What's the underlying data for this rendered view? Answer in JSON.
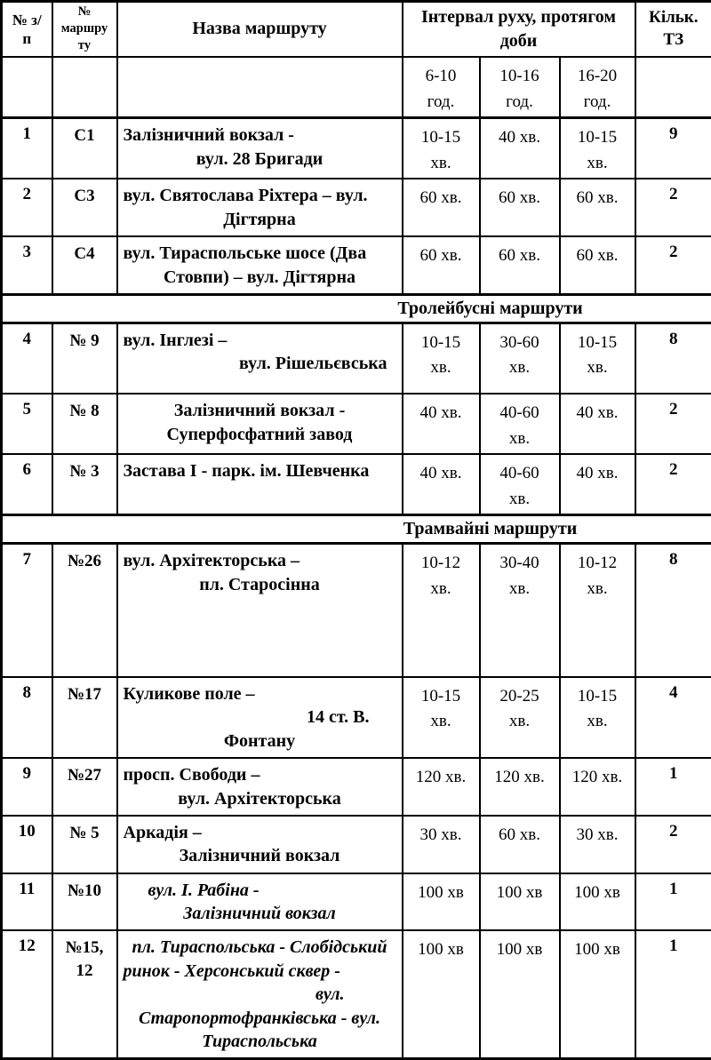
{
  "header": {
    "col_num": "№ з/\nп",
    "col_route": "№\nмаршру\nту",
    "col_name": "Назва маршруту",
    "col_interval": "Інтервал руху, протягом\nдоби",
    "col_count": "Кільк.\nТЗ",
    "periods": [
      "6-10\nгод.",
      "10-16\nгод.",
      "16-20\nгод."
    ]
  },
  "rows": [
    {
      "num": "1",
      "route": "С1",
      "italic": false,
      "name_lines": [
        {
          "text": "Залізничний вокзал -",
          "align": "left"
        },
        {
          "text": "вул. 28 Бригади",
          "align": "center"
        }
      ],
      "intervals": [
        "10-15\nхв.",
        "40 хв.",
        "10-15\nхв."
      ],
      "count": "9"
    },
    {
      "num": "2",
      "route": "С3",
      "italic": false,
      "name_lines": [
        {
          "text": "вул. Святослава Ріхтера – вул.",
          "align": "left"
        },
        {
          "text": "Дігтярна",
          "align": "center"
        }
      ],
      "intervals": [
        "60 хв.",
        "60 хв.",
        "60 хв."
      ],
      "count": "2"
    },
    {
      "num": "3",
      "route": "С4",
      "italic": false,
      "name_lines": [
        {
          "text": "вул. Тираспольське шосе (Два",
          "align": "left"
        },
        {
          "text": "Стовпи) –  вул. Дігтярна",
          "align": "center"
        }
      ],
      "intervals": [
        "60 хв.",
        "60 хв.",
        "60 хв."
      ],
      "count": "2"
    },
    {
      "type": "section",
      "title": "Тролейбусні маршрути"
    },
    {
      "num": "4",
      "route": "№ 9",
      "italic": false,
      "name_lines": [
        {
          "text": "вул. Інглезі –",
          "align": "left"
        },
        {
          "text": "вул. Рішельєвська",
          "align": "right"
        }
      ],
      "intervals": [
        "10-15\nхв.",
        "30-60\nхв.",
        "10-15\nхв."
      ],
      "count": "8"
    },
    {
      "num": "5",
      "route": "№ 8",
      "italic": false,
      "name_lines": [
        {
          "text": "Залізничний вокзал -",
          "align": "center"
        },
        {
          "text": "Суперфосфатний завод",
          "align": "center"
        }
      ],
      "intervals": [
        "40 хв.",
        "40-60\nхв.",
        "40 хв."
      ],
      "count": "2"
    },
    {
      "num": "6",
      "route": "№ 3",
      "italic": false,
      "name_lines": [
        {
          "text": "Застава І - парк. ім. Шевченка",
          "align": "left"
        }
      ],
      "intervals": [
        "40 хв.",
        "40-60\nхв.",
        "40 хв."
      ],
      "count": "2"
    },
    {
      "type": "section",
      "title": "Трамвайні маршрути"
    },
    {
      "num": "7",
      "route": "№26",
      "italic": false,
      "name_lines": [
        {
          "text": "вул. Архітекторська –",
          "align": "left"
        },
        {
          "text": "пл. Старосінна",
          "align": "center"
        }
      ],
      "intervals": [
        "10-12\nхв.",
        "30-40\nхв.",
        "10-12\nхв."
      ],
      "count": "8"
    },
    {
      "num": "8",
      "route": "№17",
      "italic": false,
      "name_lines": [
        {
          "text": "Куликове поле  –",
          "align": "left"
        },
        {
          "text": "14 ст. В.",
          "align": "right-mid"
        },
        {
          "text": "Фонтану",
          "align": "center"
        }
      ],
      "intervals": [
        "10-15\nхв.",
        "20-25\nхв.",
        "10-15\nхв."
      ],
      "count": "4"
    },
    {
      "num": "9",
      "route": "№27",
      "italic": false,
      "name_lines": [
        {
          "text": "просп. Свободи –",
          "align": "left"
        },
        {
          "text": "вул. Архітекторська",
          "align": "center"
        }
      ],
      "intervals": [
        "120 хв.",
        "120 хв.",
        "120 хв."
      ],
      "count": "1"
    },
    {
      "num": "10",
      "route": "№ 5",
      "italic": false,
      "name_lines": [
        {
          "text": "Аркадія –",
          "align": "left"
        },
        {
          "text": "Залізничний вокзал",
          "align": "center"
        }
      ],
      "intervals": [
        "30 хв.",
        "60 хв.",
        "30 хв."
      ],
      "count": "2"
    },
    {
      "num": "11",
      "route": "№10",
      "italic": true,
      "name_lines": [
        {
          "text": "вул. І. Рабіна -",
          "align": "left-indent"
        },
        {
          "text": "Залізничний вокзал",
          "align": "center"
        }
      ],
      "intervals": [
        "100 хв",
        "100 хв",
        "100 хв"
      ],
      "count": "1"
    },
    {
      "num": "12",
      "route": "№15,\n12",
      "italic": true,
      "name_lines": [
        {
          "text": "пл. Тираспольська - Слобідський",
          "align": "center"
        },
        {
          "text": "ринок - Херсонський сквер -",
          "align": "left"
        },
        {
          "text": "вул.",
          "align": "right-far"
        },
        {
          "text": "Старопортофранківська - вул.",
          "align": "center"
        },
        {
          "text": "Тираспольська",
          "align": "center"
        }
      ],
      "intervals": [
        "100 хв",
        "100 хв",
        "100 хв"
      ],
      "count": "1"
    }
  ]
}
